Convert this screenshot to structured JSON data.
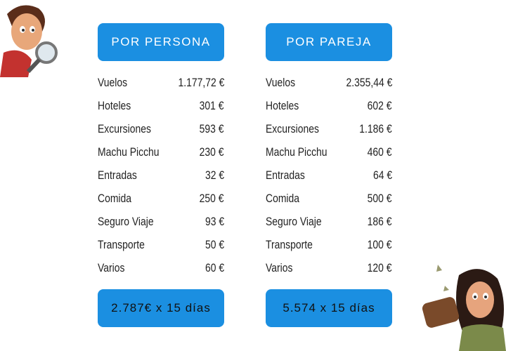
{
  "columns": [
    {
      "header": "POR PERSONA",
      "rows": [
        [
          "Vuelos",
          "1.177,72 €"
        ],
        [
          "Hoteles",
          "301 €"
        ],
        [
          "Excursiones",
          "593 €"
        ],
        [
          "Machu Picchu",
          "230 €"
        ],
        [
          "Entradas",
          "32 €"
        ],
        [
          "Comida",
          "250 €"
        ],
        [
          "Seguro Viaje",
          "93 €"
        ],
        [
          "Transporte",
          "50 €"
        ],
        [
          "Varios",
          "60 €"
        ]
      ],
      "footer": "2.787€ x 15 días"
    },
    {
      "header": "POR PAREJA",
      "rows": [
        [
          "Vuelos",
          "2.355,44 €"
        ],
        [
          "Hoteles",
          "602 €"
        ],
        [
          "Excursiones",
          "1.186 €"
        ],
        [
          "Machu Picchu",
          "460 €"
        ],
        [
          "Entradas",
          "64 €"
        ],
        [
          "Comida",
          "500 €"
        ],
        [
          "Seguro Viaje",
          "186 €"
        ],
        [
          "Transporte",
          "100 €"
        ],
        [
          "Varios",
          "120 €"
        ]
      ],
      "footer": "5.574 x 15 días"
    }
  ]
}
